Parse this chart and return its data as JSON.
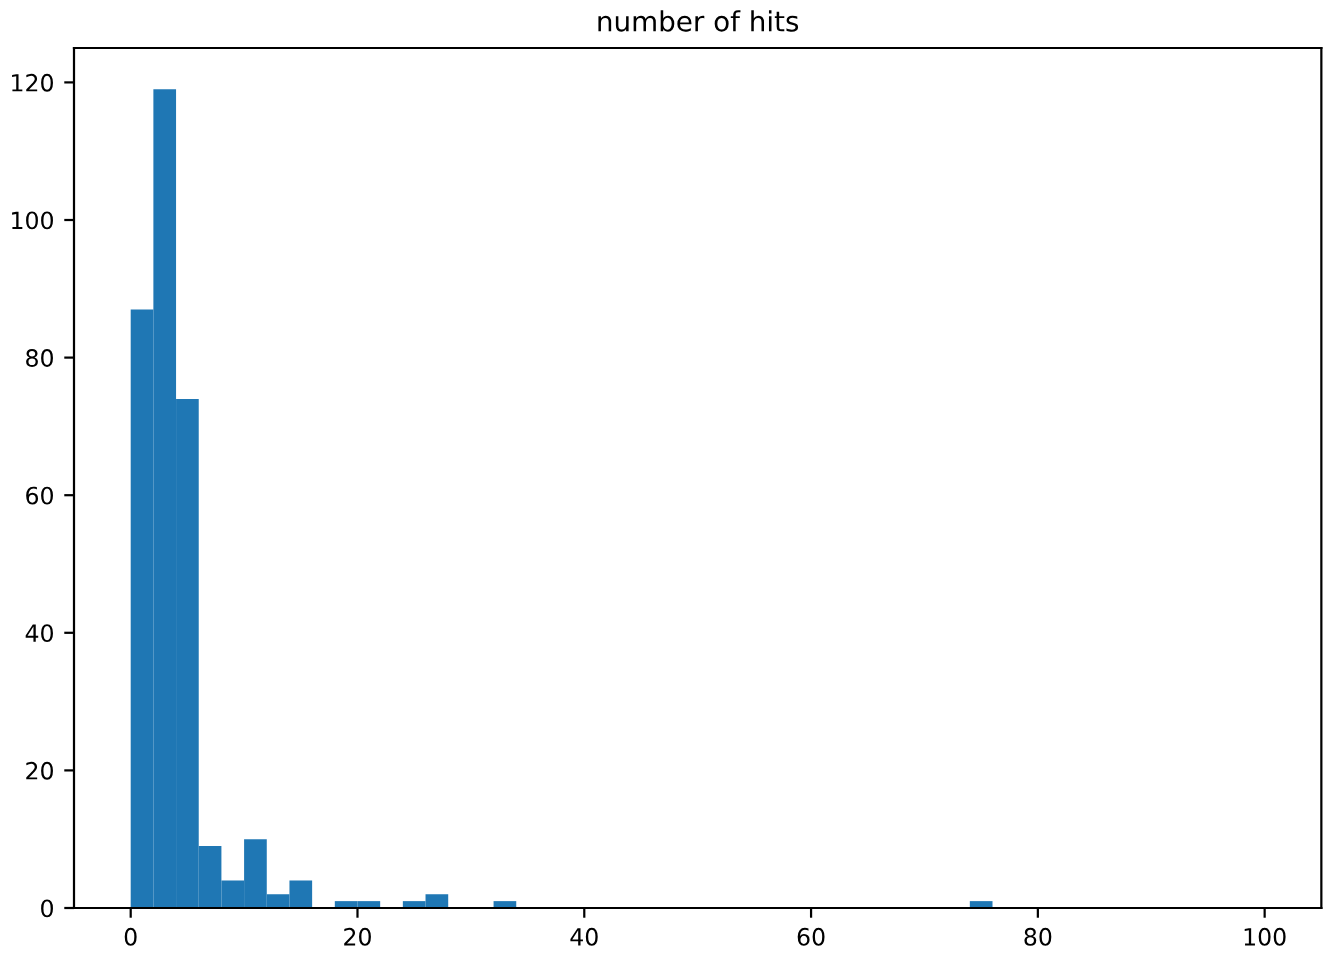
{
  "chart_data": {
    "type": "histogram",
    "title": "number of hits",
    "bins": [
      0,
      2,
      4,
      6,
      8,
      10,
      12,
      14,
      16,
      18,
      20,
      22,
      24,
      26,
      28,
      30,
      32,
      34,
      36,
      38,
      40,
      42,
      44,
      46,
      48,
      50,
      52,
      54,
      56,
      58,
      60,
      62,
      64,
      66,
      68,
      70,
      72,
      74,
      76,
      78,
      80,
      82,
      84,
      86,
      88,
      90,
      92,
      94,
      96,
      98,
      100
    ],
    "values": [
      87,
      119,
      74,
      9,
      4,
      10,
      2,
      4,
      0,
      1,
      1,
      0,
      1,
      2,
      0,
      0,
      1,
      0,
      0,
      0,
      0,
      0,
      0,
      0,
      0,
      0,
      0,
      0,
      0,
      0,
      0,
      0,
      0,
      0,
      0,
      0,
      0,
      1,
      0,
      0,
      0,
      0,
      0,
      0,
      0,
      0,
      0,
      0,
      0,
      0
    ],
    "color": "#1f77b4",
    "xlim": [
      -5,
      105
    ],
    "xticks": [
      0,
      20,
      40,
      60,
      80,
      100
    ],
    "ylim": [
      0,
      125
    ],
    "yticks": [
      0,
      20,
      40,
      60,
      80,
      100,
      120
    ],
    "grid": false
  }
}
